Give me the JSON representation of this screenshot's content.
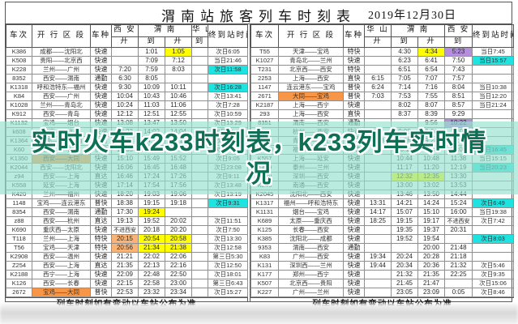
{
  "page": {
    "title": "渭南站旅客列车时刻表",
    "date": "2019年12月30日",
    "footer": "列车时刻如有变动以车站公布为准"
  },
  "overlay": {
    "line1": "实时火车k233时刻表，k233列车实时情",
    "line2": "况"
  },
  "colors": {
    "hl_yellow": "#ffff00",
    "hl_cyan": "#1fe3e0",
    "hl_purple": "#b58fdc",
    "hl_orange": "#f79646",
    "hl_peach": "#fbb475",
    "overlay_bg": "rgba(151,224,207,0.66)",
    "overlay_text": "#0d6f56"
  },
  "tables": [
    {
      "id": "left",
      "header": {
        "train": "车次",
        "section": "开 行 区 段",
        "type": "车种",
        "groups": [
          {
            "name": "西 安",
            "subs": [
              "开"
            ]
          },
          {
            "name": "渭  南",
            "subs": [
              "到",
              "开"
            ]
          },
          {
            "name": "华 山",
            "subs": [
              "到"
            ]
          }
        ],
        "end": "终到站时间"
      },
      "rows": [
        {
          "no": "K386",
          "sec": "成都——沈阳北",
          "type": "快速",
          "c1": "",
          "c2": "1:01",
          "c3": "1:05",
          "c4": "",
          "end": "次日6:05",
          "hl": {
            "c3": "yellow"
          }
        },
        {
          "no": "K508",
          "sec": "贵阳——北京西",
          "type": "快速",
          "c1": "",
          "c2": "7:09",
          "c3": "7:12",
          "c4": "",
          "end": "当日21:46"
        },
        {
          "no": "K228",
          "sec": "兰州——广州",
          "type": "快速",
          "c1": "7:20",
          "c2": "7:59",
          "c3": "8:03",
          "c4": "",
          "end": "次日11:58",
          "hl": {
            "end": "cyan"
          }
        },
        {
          "no": "8352",
          "sec": "西安——渭南",
          "type": "通勤",
          "c1": "6:30",
          "c2": "8:05",
          "c3": "",
          "c4": "",
          "end": ""
        },
        {
          "no": "K1318",
          "sec": "呼和浩特东—福州",
          "type": "快速",
          "c1": "9:30",
          "c2": "10:09",
          "c3": "10:11",
          "c4": "",
          "end": "次日16:28",
          "hl": {
            "end": "cyan"
          }
        },
        {
          "no": "K84",
          "sec": "西安——广州",
          "type": "快速",
          "c1": "10:04",
          "c2": "10:43",
          "c3": "10:46",
          "c4": "",
          "end": "次日13:41"
        },
        {
          "no": "K1028",
          "sec": "兰州——青岛北",
          "type": "快速",
          "c1": "10:24",
          "c2": "11:03",
          "c3": "11:06",
          "c4": "",
          "end": "次日7:28"
        },
        {
          "no": "K912",
          "sec": "西安——青岛",
          "type": "快速",
          "c1": "12:12",
          "c2": "12:51",
          "c3": "12:55",
          "c4": "",
          "end": "次日10:59"
        },
        {
          "no": "K1132",
          "sec": "宝鸡——烟台",
          "type": "快速",
          "c1": "13:08",
          "c2": "13:47",
          "c3": "13:50",
          "c4": "",
          "end": "次日13:29"
        },
        {
          "no": "k608",
          "sec": "西安——杭州",
          "type": "快速",
          "c1": "13:23",
          "c2": "14:02",
          "c3": "14:04",
          "c4": "",
          "end": "次日10:48"
        },
        {
          "no": "K1364",
          "sec": "成都——北京西",
          "type": "快速",
          "c1": "",
          "c2": "14:13",
          "c3": "14:16",
          "c4": "",
          "end": "次日9:40"
        },
        {
          "no": "K60",
          "sec": "西安——南京",
          "type": "快速",
          "c1": "14:35",
          "c2": "15:14",
          "c3": "15:17",
          "c4": "",
          "end": "次日16:05"
        },
        {
          "no": "K1350",
          "sec": "西安——大同",
          "type": "快速",
          "c1": "15:10",
          "c2": "15:49",
          "c3": "15:52",
          "c4": "",
          "end": "次日9:05",
          "hl": {
            "sec": "orange"
          }
        },
        {
          "no": "K2044",
          "sec": "西安——沈阳北",
          "type": "快速",
          "c1": "16:06",
          "c2": "16:45",
          "c3": "16:48",
          "c4": "",
          "end": "次日23:08"
        },
        {
          "no": "z94",
          "sec": "西安——上海",
          "type": "直达",
          "c1": "16:46",
          "c2": "17:24",
          "c3": "17:26",
          "c4": "",
          "end": "次日9:11"
        },
        {
          "no": "K558",
          "sec": "延安——上海",
          "type": "快速",
          "c1": "17:14",
          "c2": "17:54",
          "c3": "17:56",
          "c4": "",
          "end": "次日13:48"
        },
        {
          "no": "K420",
          "sec": "兰州——福州",
          "type": "快速",
          "c1": "18:20",
          "c2": "19:03",
          "c3": "19:06",
          "c4": "",
          "end": "次日13:19"
        },
        {
          "no": "1148",
          "sec": "宝鸡——连云港东",
          "type": "普快",
          "c1": "18:38",
          "c2": "19:15",
          "c3": "19:18",
          "c4": "",
          "end": "次日9:31",
          "hl": {
            "end": "cyan"
          }
        },
        {
          "no": "8354",
          "sec": "西安——渭南",
          "type": "通勤",
          "c1": "17:30",
          "c2": "19:24",
          "c3": "",
          "c4": "",
          "end": "",
          "hl": {
            "c2": "yellow"
          }
        },
        {
          "no": "z88",
          "sec": "西安——杭州",
          "type": "直达",
          "c1": "19:13",
          "c2": "19:52",
          "c3": "20:02",
          "c4": "",
          "end": "次日11:51"
        },
        {
          "no": "K690",
          "sec": "重庆西—太原",
          "type": "快速",
          "c1": "不进西安",
          "c2": "20:18",
          "c3": "20:20",
          "c4": "",
          "end": "次日7:50"
        },
        {
          "no": "T118",
          "sec": "兰州——上海",
          "type": "特快",
          "c1": "20:15",
          "c2": "20:54",
          "c3": "20:58",
          "c4": "",
          "end": "次日13:30",
          "hl": {
            "c1": "peach",
            "c2": "yellow",
            "c3": "yellow"
          }
        },
        {
          "no": "T56",
          "sec": "宝鸡——天津",
          "type": "特快",
          "c1": "20:56",
          "c2": "21:34",
          "c3": "21:38",
          "c4": "",
          "end": "次日12:58",
          "hl": {
            "c1": "peach",
            "c2": "yellow",
            "c3": "yellow"
          }
        },
        {
          "no": "K2908",
          "sec": "西安——温州",
          "type": "快速",
          "c1": "21:21",
          "c2": "22:02",
          "c3": "22:06",
          "c4": "",
          "end": "第三日5:30"
        },
        {
          "no": "Z254",
          "sec": "西安——上海",
          "type": "直达",
          "c1": "21:35",
          "c2": "22:13",
          "c3": "22:16",
          "c4": "",
          "end": "次日12:50"
        },
        {
          "no": "K2188",
          "sec": "西宁——上海",
          "type": "快速",
          "c1": "22:09",
          "c2": "22:48",
          "c3": "22:50",
          "c4": "",
          "end": "次日18:01"
        },
        {
          "no": "K126",
          "sec": "西安——长春",
          "type": "快速",
          "c1": "22:15",
          "c2": "22:58",
          "c3": "23:00",
          "c4": "",
          "end": "第三日6:43"
        },
        {
          "no": "2672",
          "sec": "宝鸡——大同",
          "type": "普快",
          "c1": "22:53",
          "c2": "23:32",
          "c3": "23:34",
          "c4": "",
          "end": "次日15:27",
          "hl": {
            "sec": "orange"
          }
        }
      ]
    },
    {
      "id": "right",
      "header": {
        "train": "车次",
        "section": "开 行 区 段",
        "type": "车种",
        "groups": [
          {
            "name": "华 山",
            "subs": [
              "开"
            ]
          },
          {
            "name": "渭  南",
            "subs": [
              "到",
              "开"
            ]
          },
          {
            "name": "西 安",
            "subs": [
              "到"
            ]
          }
        ],
        "end": "终到站时间"
      },
      "rows": [
        {
          "no": "T55",
          "sec": "天津——宝鸡",
          "type": "特快",
          "c1": "",
          "c2": "4:30",
          "c3": "4:34",
          "c4": "5:23",
          "end": "当日7:45",
          "hl": {
            "c3": "yellow",
            "c4": "purple"
          }
        },
        {
          "no": "K1027",
          "sec": "青岛北——兰州",
          "type": "快速",
          "c1": "",
          "c2": "6:23",
          "c3": "6:41",
          "c4": "7:50",
          "end": "当日15:57",
          "hl": {
            "end": "cyan"
          }
        },
        {
          "no": "T231",
          "sec": "北京西——西安",
          "type": "特快",
          "c1": "",
          "c2": "6:51",
          "c3": "6:54",
          "c4": "7:43",
          "end": ""
        },
        {
          "no": "2253",
          "sec": "上海——西安",
          "type": "直快",
          "c1": "6:15",
          "c2": "7:05",
          "c3": "7:07",
          "c4": "7:57",
          "end": ""
        },
        {
          "no": "1147",
          "sec": "连云港东——宝鸡",
          "type": "普快",
          "c1": "6:24",
          "c2": "7:14",
          "c3": "7:16",
          "c4": "8:04",
          "end": "当日10:38"
        },
        {
          "no": "2671",
          "sec": "大同——宝鸡",
          "type": "普快",
          "c1": "7:03",
          "c2": "7:53",
          "c3": "7:55",
          "c4": "8:51",
          "end": "当日12:20",
          "hl": {
            "sec": "orange"
          }
        },
        {
          "no": "K2187",
          "sec": "上海——西宁",
          "type": "快速",
          "c1": "",
          "c2": "8:02",
          "c3": "8:07",
          "c4": "8:57",
          "end": "当日21:24"
        },
        {
          "no": "293",
          "sec": "上海——西安",
          "type": "直快",
          "c1": "",
          "c2": "8:37",
          "c3": "8:39",
          "c4": "9:29",
          "end": ""
        },
        {
          "no": "8351",
          "sec": "渭南——西安",
          "type": "通勤",
          "c1": "",
          "c2": "",
          "c3": "9:56",
          "c4": "10:22",
          "end": "",
          "hl": {
            "c4": "purple"
          }
        },
        {
          "no": "k607",
          "sec": "杭州——西安",
          "type": "快速",
          "c1": "",
          "c2": "9:00",
          "c3": "9:06",
          "c4": "10:09",
          "end": ""
        },
        {
          "no": "K911",
          "sec": "青岛——西安",
          "type": "快速",
          "c1": "8:38",
          "c2": "9:26",
          "c3": "9:28",
          "c4": "10:25",
          "end": ""
        },
        {
          "no": "K1040",
          "sec": "福州——兰州",
          "type": "快速",
          "c1": "",
          "c2": "10:11",
          "c3": "10:14",
          "c4": "11:05",
          "end": "当日16:45",
          "hl": {
            "end": "cyan"
          }
        },
        {
          "no": "K557",
          "sec": "上海——延安",
          "type": "快速",
          "c1": "",
          "c2": "10:44",
          "c3": "10:48",
          "c4": "11:38",
          "end": "当日15:15"
        },
        {
          "no": "K419",
          "sec": "泰州——兰州",
          "type": "快速",
          "c1": "",
          "c2": "11:17",
          "c3": "11:20",
          "c4": "12:19",
          "end": "当日20:23",
          "hl": {
            "end": "cyan"
          }
        },
        {
          "no": "K449",
          "sec": "深圳——西安",
          "type": "快速",
          "c1": "",
          "c2": "12:32",
          "c3": "12:35",
          "c4": "13:30",
          "end": "",
          "hl": {
            "c2": "yellow",
            "c3": "yellow"
          }
        },
        {
          "no": "K246",
          "sec": "南通——西安",
          "type": "快速",
          "c1": "",
          "c2": "13:00",
          "c3": "13:02",
          "c4": "13:53",
          "end": ""
        },
        {
          "no": "K2045",
          "sec": "沈阳北——西安",
          "type": "快速",
          "c1": "",
          "c2": "13:46",
          "c3": "13:50",
          "c4": "14:44",
          "end": ""
        },
        {
          "no": "K1317",
          "sec": "福州——呼和浩特东",
          "type": "快速",
          "c1": "13:31",
          "c2": "14:21",
          "c3": "14:24",
          "c4": "15:24",
          "end": "次日6:49",
          "hl": {
            "end": "cyan"
          }
        },
        {
          "no": "K1131",
          "sec": "烟台——宝鸡",
          "type": "快速",
          "c1": "14:17",
          "c2": "15:07",
          "c3": "15:10",
          "c4": "16:00",
          "end": "当日19:38"
        },
        {
          "no": "K689",
          "sec": "太原——重庆西",
          "type": "快速",
          "c1": "18:25",
          "c2": "19:15",
          "c3": "19:17",
          "c4": "不进西安",
          "end": "次日7:42"
        },
        {
          "no": "K125",
          "sec": "长春——西安",
          "type": "快速",
          "c1": "",
          "c2": "19:35",
          "c3": "19:37",
          "c4": "20:31",
          "end": ""
        },
        {
          "no": "K385",
          "sec": "沈阳北——成都",
          "type": "快速",
          "c1": "",
          "c2": "19:52",
          "c3": "19:54",
          "c4": "",
          "end": "次日8:03",
          "hl": {
            "end": "cyan"
          }
        },
        {
          "no": "9353",
          "sec": "渭南——西安",
          "type": "通勤",
          "c1": "",
          "c2": "",
          "c3": "20:00",
          "c4": "21:48",
          "end": ""
        },
        {
          "no": "K83",
          "sec": "广州——西安",
          "type": "快速",
          "c1": "19:34",
          "c2": "20:24",
          "c3": "20:28",
          "c4": "21:18",
          "end": ""
        },
        {
          "no": "K131",
          "sec": "深圳西——兰州",
          "type": "快速",
          "c1": "19:44",
          "c2": "20:34",
          "c3": "20:36",
          "c4": "21:32",
          "end": "次日5:46"
        },
        {
          "no": "K177",
          "sec": "郑州——西宁",
          "type": "快速",
          "c1": "",
          "c2": "21:32",
          "c3": "21:35",
          "c4": "22:25",
          "end": "次日9:35"
        },
        {
          "no": "K507",
          "sec": "北京西——贵阳",
          "type": "快速",
          "c1": "",
          "c2": "21:45",
          "c3": "21:47",
          "c4": "",
          "end": "次日15:06"
        },
        {
          "no": "K227",
          "sec": "广州——兰州",
          "type": "快速",
          "c1": "",
          "c2": "23:05",
          "c3": "23:09",
          "c4": "0:05",
          "end": "次日8:46"
        }
      ]
    }
  ]
}
